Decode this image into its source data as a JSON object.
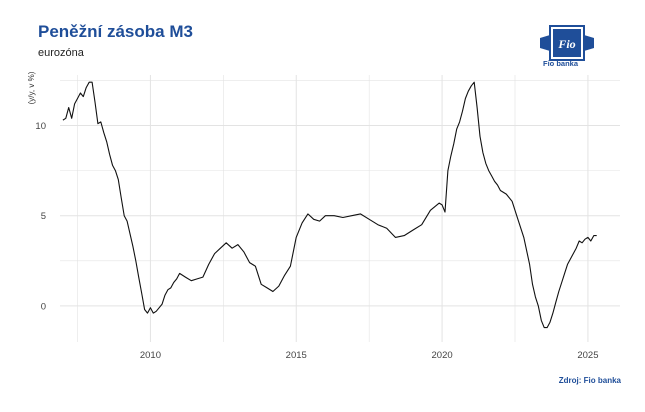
{
  "header": {
    "title": "Peněžní zásoba M3",
    "subtitle": "eurozóna"
  },
  "logo": {
    "brand_text": "Fio banka",
    "emblem_text": "Fio"
  },
  "footer": {
    "source": "Zdroj: Fio banka"
  },
  "colors": {
    "title": "#1f4e99",
    "line": "#111111",
    "grid": "#e3e3e3"
  },
  "chart_data": {
    "type": "line",
    "title": "Peněžní zásoba M3",
    "subtitle": "eurozóna",
    "xlabel": "",
    "ylabel": "(y/y, v %)",
    "xlim": [
      2006.9,
      2026.1
    ],
    "ylim": [
      -2.0,
      12.8
    ],
    "x_ticks": [
      2010,
      2015,
      2020,
      2025
    ],
    "y_ticks": [
      0,
      5,
      10
    ],
    "grid": true,
    "series": [
      {
        "name": "",
        "x": [
          2007.0,
          2007.1,
          2007.2,
          2007.3,
          2007.4,
          2007.5,
          2007.6,
          2007.7,
          2007.8,
          2007.9,
          2008.0,
          2008.1,
          2008.2,
          2008.3,
          2008.4,
          2008.5,
          2008.6,
          2008.7,
          2008.8,
          2008.9,
          2009.0,
          2009.1,
          2009.2,
          2009.3,
          2009.4,
          2009.5,
          2009.6,
          2009.7,
          2009.8,
          2009.9,
          2010.0,
          2010.1,
          2010.2,
          2010.3,
          2010.4,
          2010.5,
          2010.6,
          2010.7,
          2010.8,
          2010.9,
          2011.0,
          2011.2,
          2011.4,
          2011.6,
          2011.8,
          2012.0,
          2012.2,
          2012.4,
          2012.6,
          2012.8,
          2013.0,
          2013.2,
          2013.4,
          2013.6,
          2013.8,
          2014.0,
          2014.2,
          2014.4,
          2014.6,
          2014.8,
          2015.0,
          2015.2,
          2015.4,
          2015.6,
          2015.8,
          2016.0,
          2016.3,
          2016.6,
          2016.9,
          2017.2,
          2017.5,
          2017.8,
          2018.1,
          2018.4,
          2018.7,
          2019.0,
          2019.3,
          2019.6,
          2019.9,
          2020.0,
          2020.1,
          2020.2,
          2020.3,
          2020.4,
          2020.5,
          2020.6,
          2020.7,
          2020.8,
          2020.9,
          2021.0,
          2021.1,
          2021.2,
          2021.3,
          2021.4,
          2021.5,
          2021.6,
          2021.7,
          2021.8,
          2021.9,
          2022.0,
          2022.2,
          2022.4,
          2022.6,
          2022.8,
          2023.0,
          2023.1,
          2023.2,
          2023.3,
          2023.4,
          2023.5,
          2023.6,
          2023.7,
          2023.8,
          2023.9,
          2024.0,
          2024.1,
          2024.2,
          2024.3,
          2024.4,
          2024.5,
          2024.6,
          2024.7,
          2024.8,
          2024.9,
          2025.0,
          2025.1,
          2025.2,
          2025.3
        ],
        "values": [
          10.3,
          10.4,
          11.0,
          10.4,
          11.2,
          11.5,
          11.8,
          11.6,
          12.1,
          12.4,
          12.4,
          11.3,
          10.1,
          10.2,
          9.6,
          9.1,
          8.4,
          7.8,
          7.5,
          7.0,
          6.0,
          5.0,
          4.7,
          4.0,
          3.3,
          2.5,
          1.6,
          0.7,
          -0.2,
          -0.4,
          -0.1,
          -0.4,
          -0.3,
          -0.1,
          0.1,
          0.6,
          0.9,
          1.0,
          1.3,
          1.5,
          1.8,
          1.6,
          1.4,
          1.5,
          1.6,
          2.3,
          2.9,
          3.2,
          3.5,
          3.2,
          3.4,
          3.0,
          2.4,
          2.2,
          1.2,
          1.0,
          0.8,
          1.1,
          1.7,
          2.2,
          3.8,
          4.6,
          5.1,
          4.8,
          4.7,
          5.0,
          5.0,
          4.9,
          5.0,
          5.1,
          4.8,
          4.5,
          4.3,
          3.8,
          3.9,
          4.2,
          4.5,
          5.3,
          5.7,
          5.6,
          5.2,
          7.5,
          8.3,
          9.0,
          9.8,
          10.2,
          10.8,
          11.5,
          11.9,
          12.2,
          12.4,
          11.0,
          9.4,
          8.5,
          7.9,
          7.5,
          7.2,
          6.9,
          6.7,
          6.4,
          6.2,
          5.8,
          4.8,
          3.8,
          2.3,
          1.2,
          0.5,
          0.0,
          -0.8,
          -1.2,
          -1.2,
          -0.9,
          -0.4,
          0.2,
          0.8,
          1.3,
          1.8,
          2.3,
          2.6,
          2.9,
          3.2,
          3.6,
          3.5,
          3.7,
          3.8,
          3.6,
          3.9,
          3.9
        ]
      }
    ]
  }
}
